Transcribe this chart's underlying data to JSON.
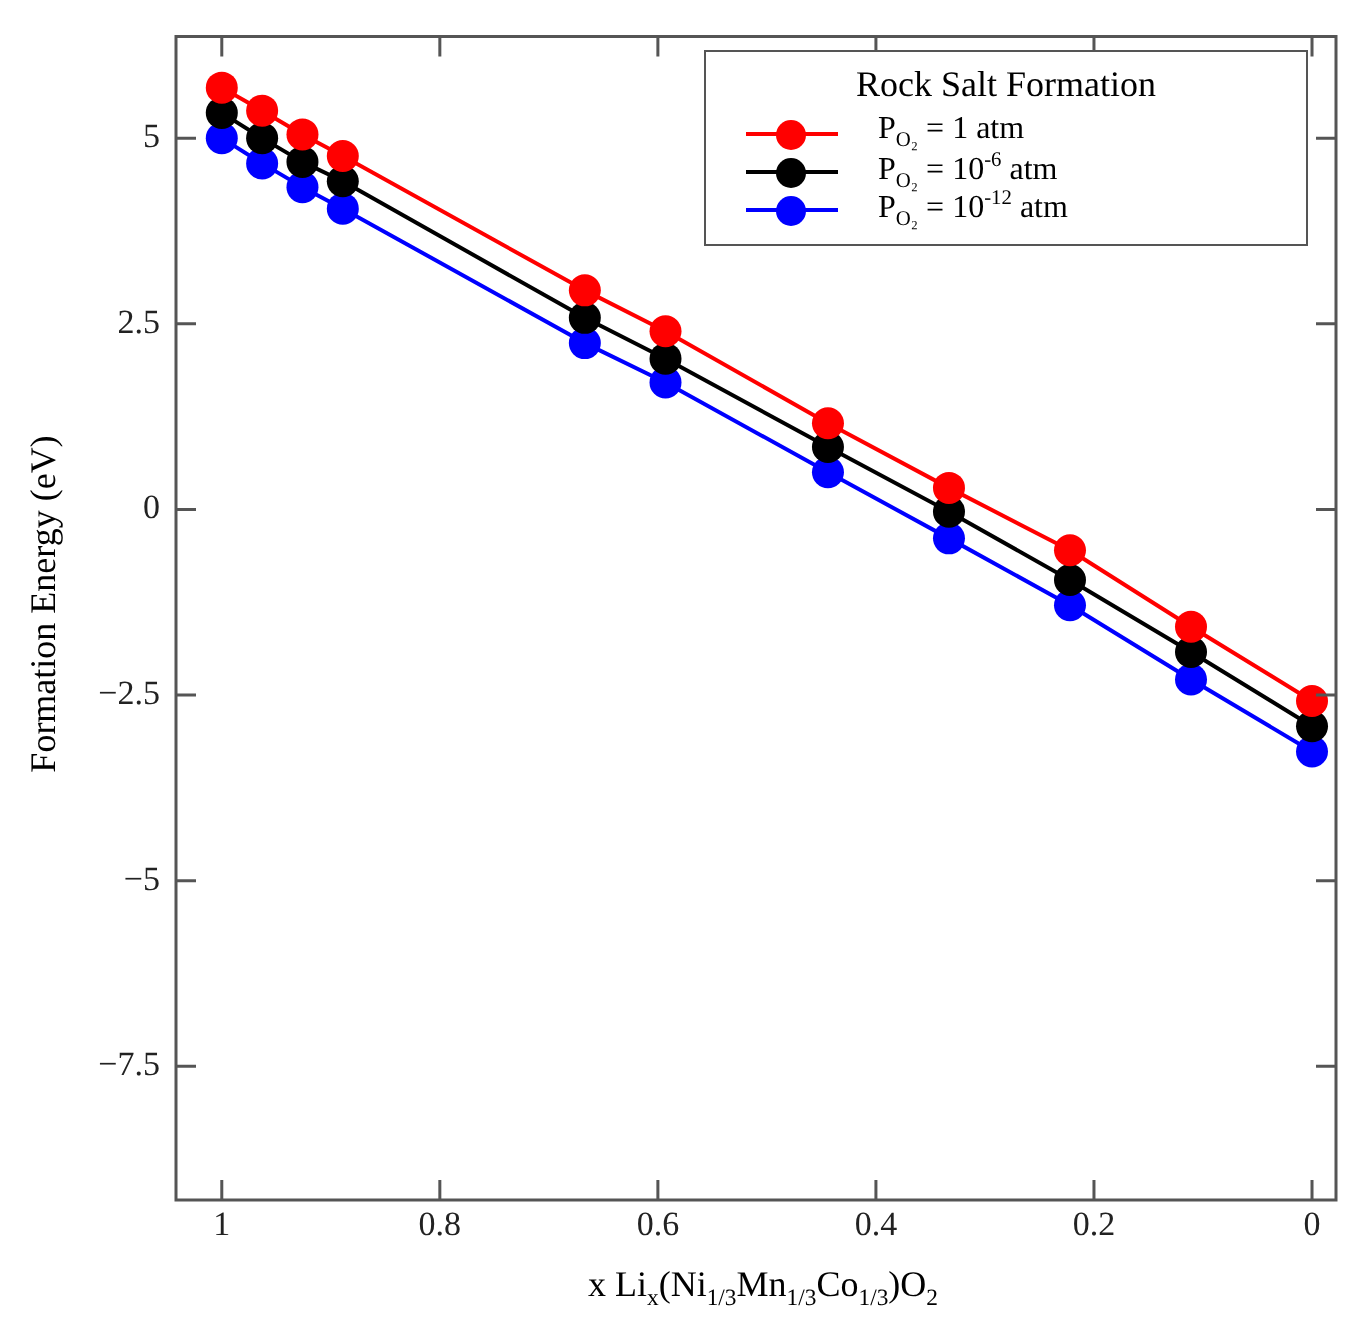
{
  "chart_data": {
    "type": "line",
    "xlabel": "x Li$_{x}$(Ni$_{1/3}$Mn$_{1/3}$Co$_{1/3}$)O$_{2}$",
    "ylabel": "Formation Energy (eV)",
    "legend_title": "Rock Salt Formation",
    "legend": "top right",
    "marker": "circle",
    "line_style": "solid",
    "grid": false,
    "x": [
      1,
      0.963,
      0.926,
      0.889,
      0.667,
      0.593,
      0.444,
      0.333,
      0.222,
      0.111,
      0
    ],
    "xlim": [
      1.042,
      -0.022
    ],
    "xticks": [
      1,
      0.8,
      0.6,
      0.4,
      0.2,
      0
    ],
    "ylim": [
      -9.3,
      6.37
    ],
    "yticks": [
      5,
      2.5,
      0,
      {
        "value": -2.5,
        "label": "−2.5"
      },
      {
        "value": -5,
        "label": "−5"
      },
      {
        "value": -7.5,
        "label": "−7.5"
      }
    ],
    "series": [
      {
        "name": "P$_{O₂}$ = 1 atm",
        "color": "#ff0000",
        "values": [
          5.68,
          5.37,
          5.05,
          4.76,
          2.95,
          2.4,
          1.16,
          0.29,
          -0.55,
          -1.58,
          -2.58
        ]
      },
      {
        "name": "P$_{O₂}$ = 10$^{-6}$ atm",
        "color": "#000000",
        "values": [
          5.34,
          5.0,
          4.68,
          4.42,
          2.58,
          2.03,
          0.84,
          -0.03,
          -0.95,
          -1.92,
          -2.92
        ]
      },
      {
        "name": "P$_{O₂}$ = 10$^{-12}$ atm",
        "color": "#0000ff",
        "values": [
          5.0,
          4.66,
          4.34,
          4.05,
          2.24,
          1.71,
          0.5,
          -0.39,
          -1.29,
          -2.29,
          -3.26
        ]
      }
    ]
  }
}
